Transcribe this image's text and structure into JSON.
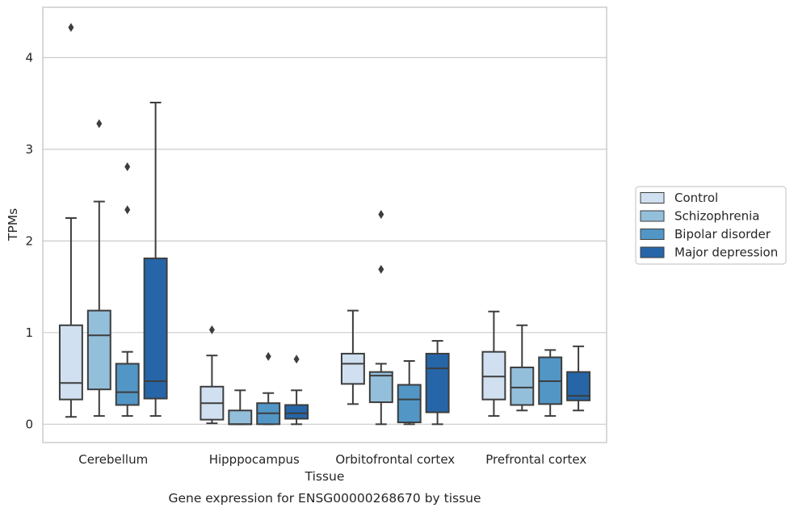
{
  "chart_data": {
    "type": "box",
    "title": "",
    "caption": "Gene expression for ENSG00000268670 by tissue",
    "xlabel": "Tissue",
    "ylabel": "TPMs",
    "ylim": [
      -0.2,
      4.55
    ],
    "yticks": [
      0,
      1,
      2,
      3,
      4
    ],
    "grid": "horizontal",
    "legend_placement": "right",
    "categories": [
      "Cerebellum",
      "Hipppocampus",
      "Orbitofrontal cortex",
      "Prefrontal cortex"
    ],
    "series": [
      {
        "name": "Control",
        "color": "#d0e0f0",
        "boxes": [
          {
            "whislo": 0.08,
            "q1": 0.27,
            "med": 0.45,
            "q3": 1.08,
            "whishi": 2.25,
            "fliers": [
              4.33
            ]
          },
          {
            "whislo": 0.01,
            "q1": 0.05,
            "med": 0.23,
            "q3": 0.41,
            "whishi": 0.75,
            "fliers": [
              1.03
            ]
          },
          {
            "whislo": 0.22,
            "q1": 0.44,
            "med": 0.66,
            "q3": 0.77,
            "whishi": 1.24,
            "fliers": []
          },
          {
            "whislo": 0.09,
            "q1": 0.27,
            "med": 0.52,
            "q3": 0.79,
            "whishi": 1.23,
            "fliers": []
          }
        ]
      },
      {
        "name": "Schizophrenia",
        "color": "#94bfdb",
        "boxes": [
          {
            "whislo": 0.09,
            "q1": 0.38,
            "med": 0.97,
            "q3": 1.24,
            "whishi": 2.43,
            "fliers": [
              3.28
            ]
          },
          {
            "whislo": 0.0,
            "q1": 0.0,
            "med": 0.0,
            "q3": 0.15,
            "whishi": 0.37,
            "fliers": []
          },
          {
            "whislo": 0.0,
            "q1": 0.24,
            "med": 0.53,
            "q3": 0.57,
            "whishi": 0.66,
            "fliers": [
              1.69,
              2.29
            ]
          },
          {
            "whislo": 0.15,
            "q1": 0.21,
            "med": 0.4,
            "q3": 0.62,
            "whishi": 1.08,
            "fliers": []
          }
        ]
      },
      {
        "name": "Bipolar disorder",
        "color": "#5296c5",
        "boxes": [
          {
            "whislo": 0.09,
            "q1": 0.21,
            "med": 0.35,
            "q3": 0.66,
            "whishi": 0.79,
            "fliers": [
              2.34,
              2.81
            ]
          },
          {
            "whislo": 0.0,
            "q1": 0.0,
            "med": 0.12,
            "q3": 0.23,
            "whishi": 0.34,
            "fliers": [
              0.74
            ]
          },
          {
            "whislo": 0.0,
            "q1": 0.02,
            "med": 0.27,
            "q3": 0.43,
            "whishi": 0.69,
            "fliers": []
          },
          {
            "whislo": 0.09,
            "q1": 0.22,
            "med": 0.47,
            "q3": 0.73,
            "whishi": 0.81,
            "fliers": []
          }
        ]
      },
      {
        "name": "Major depression",
        "color": "#2666a8",
        "boxes": [
          {
            "whislo": 0.09,
            "q1": 0.28,
            "med": 0.47,
            "q3": 1.81,
            "whishi": 3.51,
            "fliers": []
          },
          {
            "whislo": 0.0,
            "q1": 0.06,
            "med": 0.12,
            "q3": 0.21,
            "whishi": 0.37,
            "fliers": [
              0.71
            ]
          },
          {
            "whislo": 0.0,
            "q1": 0.13,
            "med": 0.61,
            "q3": 0.77,
            "whishi": 0.91,
            "fliers": []
          },
          {
            "whislo": 0.15,
            "q1": 0.26,
            "med": 0.31,
            "q3": 0.57,
            "whishi": 0.85,
            "fliers": []
          }
        ]
      }
    ]
  }
}
